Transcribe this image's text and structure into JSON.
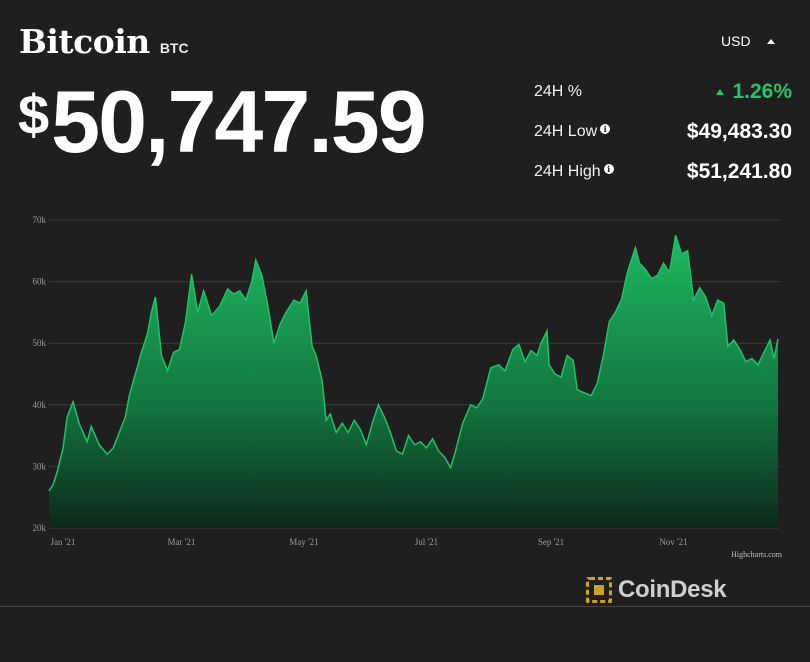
{
  "header": {
    "name": "Bitcoin",
    "ticker": "BTC"
  },
  "price": {
    "symbol": "$",
    "value": "50,747.59"
  },
  "currency": {
    "selected": "USD"
  },
  "stats": [
    {
      "label": "24H %",
      "value": "1.26%",
      "info": false,
      "trend": "up"
    },
    {
      "label": "24H Low",
      "value": "$49,483.30",
      "info": true
    },
    {
      "label": "24H High",
      "value": "$51,241.80",
      "info": true
    }
  ],
  "credit": "Highcharts.com",
  "brand": {
    "name": "CoinDesk"
  },
  "colors": {
    "background": "#1f1f1f",
    "accent_green": "#27c26a",
    "line_green": "#1fc266",
    "brand_gold": "#c9a227"
  },
  "chart_data": {
    "type": "area",
    "title": "",
    "xlabel": "",
    "ylabel": "",
    "unit": "USD",
    "ylim": [
      20000,
      70000
    ],
    "xlim": [
      "2021-01-01",
      "2021-12-31"
    ],
    "yticks": [
      {
        "value": 20000,
        "label": "20k"
      },
      {
        "value": 30000,
        "label": "30k"
      },
      {
        "value": 40000,
        "label": "40k"
      },
      {
        "value": 50000,
        "label": "50k"
      },
      {
        "value": 60000,
        "label": "60k"
      },
      {
        "value": 70000,
        "label": "70k"
      }
    ],
    "xticks": [
      {
        "date": "2021-01-01",
        "label": "Jan '21"
      },
      {
        "date": "2021-03-01",
        "label": "Mar '21"
      },
      {
        "date": "2021-05-01",
        "label": "May '21"
      },
      {
        "date": "2021-07-01",
        "label": "Jul '21"
      },
      {
        "date": "2021-09-01",
        "label": "Sep '21"
      },
      {
        "date": "2021-11-01",
        "label": "Nov '21"
      }
    ],
    "grid": true,
    "series": [
      {
        "points": [
          [
            "2021-01-01",
            26000
          ],
          [
            "2021-01-03",
            27000
          ],
          [
            "2021-01-05",
            29000
          ],
          [
            "2021-01-08",
            33000
          ],
          [
            "2021-01-10",
            38000
          ],
          [
            "2021-01-13",
            40500
          ],
          [
            "2021-01-16",
            37000
          ],
          [
            "2021-01-20",
            34000
          ],
          [
            "2021-01-22",
            36500
          ],
          [
            "2021-01-26",
            33500
          ],
          [
            "2021-01-30",
            32000
          ],
          [
            "2021-02-02",
            33000
          ],
          [
            "2021-02-05",
            35500
          ],
          [
            "2021-02-08",
            38000
          ],
          [
            "2021-02-10",
            41500
          ],
          [
            "2021-02-13",
            45000
          ],
          [
            "2021-02-16",
            48500
          ],
          [
            "2021-02-19",
            51500
          ],
          [
            "2021-02-21",
            55000
          ],
          [
            "2021-02-23",
            57500
          ],
          [
            "2021-02-26",
            48000
          ],
          [
            "2021-03-01",
            45500
          ],
          [
            "2021-03-04",
            48500
          ],
          [
            "2021-03-07",
            49000
          ],
          [
            "2021-03-10",
            53500
          ],
          [
            "2021-03-13",
            61200
          ],
          [
            "2021-03-16",
            55000
          ],
          [
            "2021-03-19",
            58500
          ],
          [
            "2021-03-23",
            54500
          ],
          [
            "2021-03-27",
            56000
          ],
          [
            "2021-03-31",
            58800
          ],
          [
            "2021-04-03",
            58000
          ],
          [
            "2021-04-06",
            58500
          ],
          [
            "2021-04-09",
            57000
          ],
          [
            "2021-04-12",
            60000
          ],
          [
            "2021-04-14",
            63500
          ],
          [
            "2021-04-17",
            61000
          ],
          [
            "2021-04-20",
            56000
          ],
          [
            "2021-04-23",
            50000
          ],
          [
            "2021-04-26",
            53000
          ],
          [
            "2021-04-29",
            55000
          ],
          [
            "2021-05-03",
            57000
          ],
          [
            "2021-05-06",
            56500
          ],
          [
            "2021-05-09",
            58500
          ],
          [
            "2021-05-12",
            49500
          ],
          [
            "2021-05-14",
            48000
          ],
          [
            "2021-05-17",
            44000
          ],
          [
            "2021-05-19",
            37500
          ],
          [
            "2021-05-21",
            38500
          ],
          [
            "2021-05-24",
            35500
          ],
          [
            "2021-05-27",
            37000
          ],
          [
            "2021-05-30",
            35500
          ],
          [
            "2021-06-02",
            37500
          ],
          [
            "2021-06-05",
            36000
          ],
          [
            "2021-06-08",
            33500
          ],
          [
            "2021-06-11",
            37000
          ],
          [
            "2021-06-14",
            40000
          ],
          [
            "2021-06-17",
            38000
          ],
          [
            "2021-06-20",
            35500
          ],
          [
            "2021-06-23",
            32500
          ],
          [
            "2021-06-26",
            32000
          ],
          [
            "2021-06-29",
            35000
          ],
          [
            "2021-07-02",
            33500
          ],
          [
            "2021-07-05",
            34000
          ],
          [
            "2021-07-08",
            33000
          ],
          [
            "2021-07-11",
            34500
          ],
          [
            "2021-07-14",
            32500
          ],
          [
            "2021-07-17",
            31500
          ],
          [
            "2021-07-20",
            29800
          ],
          [
            "2021-07-22",
            32000
          ],
          [
            "2021-07-26",
            37000
          ],
          [
            "2021-07-30",
            40000
          ],
          [
            "2021-08-02",
            39500
          ],
          [
            "2021-08-05",
            41000
          ],
          [
            "2021-08-09",
            46000
          ],
          [
            "2021-08-13",
            46500
          ],
          [
            "2021-08-16",
            45500
          ],
          [
            "2021-08-20",
            49000
          ],
          [
            "2021-08-23",
            49800
          ],
          [
            "2021-08-26",
            47000
          ],
          [
            "2021-08-29",
            48800
          ],
          [
            "2021-09-01",
            48000
          ],
          [
            "2021-09-03",
            50000
          ],
          [
            "2021-09-06",
            52000
          ],
          [
            "2021-09-07",
            46500
          ],
          [
            "2021-09-10",
            45000
          ],
          [
            "2021-09-13",
            44500
          ],
          [
            "2021-09-16",
            48000
          ],
          [
            "2021-09-19",
            47200
          ],
          [
            "2021-09-21",
            42500
          ],
          [
            "2021-09-24",
            42000
          ],
          [
            "2021-09-28",
            41500
          ],
          [
            "2021-10-01",
            43500
          ],
          [
            "2021-10-04",
            48000
          ],
          [
            "2021-10-07",
            53500
          ],
          [
            "2021-10-10",
            55000
          ],
          [
            "2021-10-13",
            57000
          ],
          [
            "2021-10-16",
            61500
          ],
          [
            "2021-10-20",
            65500
          ],
          [
            "2021-10-22",
            63000
          ],
          [
            "2021-10-25",
            62000
          ],
          [
            "2021-10-28",
            60500
          ],
          [
            "2021-10-31",
            61000
          ],
          [
            "2021-11-03",
            63000
          ],
          [
            "2021-11-06",
            61500
          ],
          [
            "2021-11-09",
            67500
          ],
          [
            "2021-11-12",
            64500
          ],
          [
            "2021-11-15",
            65000
          ],
          [
            "2021-11-18",
            57000
          ],
          [
            "2021-11-21",
            59000
          ],
          [
            "2021-11-24",
            57500
          ],
          [
            "2021-11-27",
            54500
          ],
          [
            "2021-11-30",
            57000
          ],
          [
            "2021-12-03",
            56500
          ],
          [
            "2021-12-05",
            49500
          ],
          [
            "2021-12-08",
            50500
          ],
          [
            "2021-12-11",
            49000
          ],
          [
            "2021-12-14",
            47000
          ],
          [
            "2021-12-17",
            47500
          ],
          [
            "2021-12-20",
            46500
          ],
          [
            "2021-12-23",
            48500
          ],
          [
            "2021-12-26",
            50500
          ],
          [
            "2021-12-28",
            47500
          ],
          [
            "2021-12-30",
            50700
          ]
        ]
      }
    ]
  }
}
